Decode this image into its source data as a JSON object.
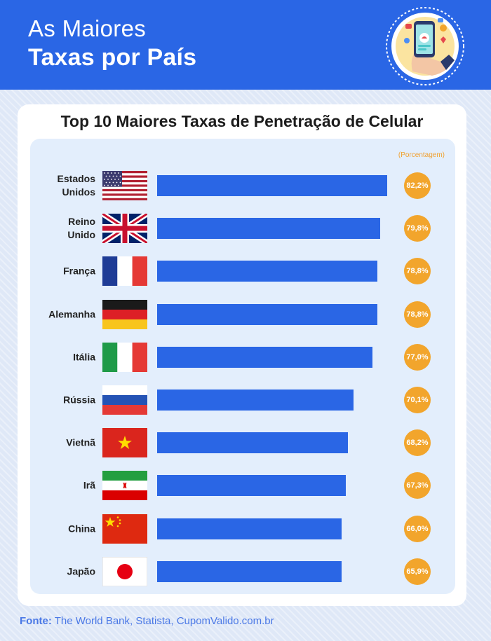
{
  "header": {
    "title_line1": "As Maiores",
    "title_line2": "Taxas por País"
  },
  "source": {
    "label": "Fonte:",
    "text": "The World Bank, Statista, CupomValido.com.br"
  },
  "colors": {
    "header_blue": "#2a66e5",
    "bar_blue": "#2a66e5",
    "badge_orange": "#f2a52c",
    "panel_bg": "#e3eefc"
  },
  "badge_icon": "smartphone-hand-icon",
  "chart_data": {
    "type": "bar",
    "orientation": "horizontal",
    "title": "Top 10 Maiores Taxas de Penetração de Celular",
    "unit_label": "(Porcentagem)",
    "xlim": [
      0,
      82.2
    ],
    "grid": false,
    "categories": [
      {
        "lines": [
          "Estados",
          "Unidos"
        ],
        "flag": "us-flag-icon"
      },
      {
        "lines": [
          "Reino",
          "Unido"
        ],
        "flag": "uk-flag-icon"
      },
      {
        "lines": [
          "França"
        ],
        "flag": "france-flag-icon"
      },
      {
        "lines": [
          "Alemanha"
        ],
        "flag": "germany-flag-icon"
      },
      {
        "lines": [
          "Itália"
        ],
        "flag": "italy-flag-icon"
      },
      {
        "lines": [
          "Rússia"
        ],
        "flag": "russia-flag-icon"
      },
      {
        "lines": [
          "Vietnã"
        ],
        "flag": "vietnam-flag-icon"
      },
      {
        "lines": [
          "Irã"
        ],
        "flag": "iran-flag-icon"
      },
      {
        "lines": [
          "China"
        ],
        "flag": "china-flag-icon"
      },
      {
        "lines": [
          "Japão"
        ],
        "flag": "japan-flag-icon"
      }
    ],
    "values": [
      82.2,
      79.8,
      78.8,
      78.8,
      77.0,
      70.1,
      68.2,
      67.3,
      66.0,
      65.9
    ],
    "value_labels": [
      "82,2%",
      "79,8%",
      "78,8%",
      "78,8%",
      "77,0%",
      "70,1%",
      "68,2%",
      "67,3%",
      "66,0%",
      "65,9%"
    ]
  }
}
